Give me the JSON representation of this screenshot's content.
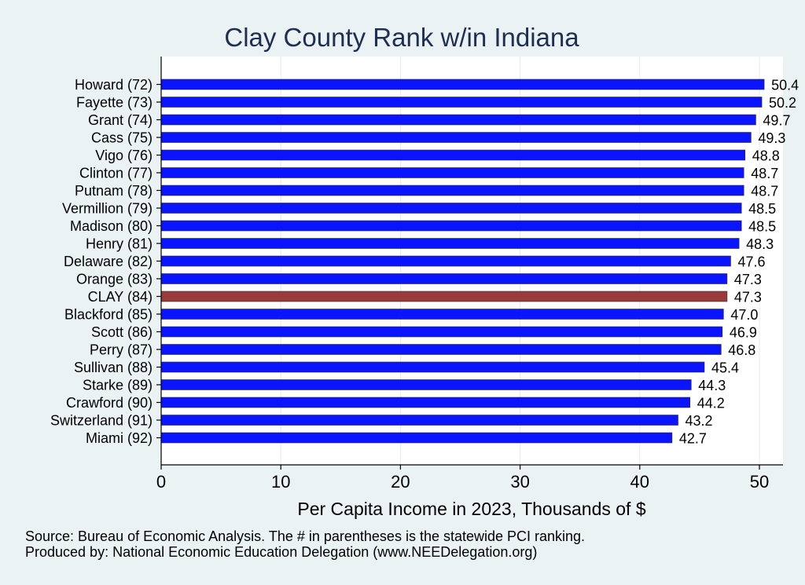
{
  "chart_data": {
    "type": "bar",
    "orientation": "horizontal",
    "title": "Clay County Rank w/in Indiana",
    "xlabel": "Per Capita Income in 2023, Thousands of $",
    "ylabel": "",
    "xlim": [
      0,
      52
    ],
    "xticks": [
      0,
      10,
      20,
      30,
      40,
      50
    ],
    "grid": true,
    "categories": [
      "Howard (72)",
      "Fayette (73)",
      "Grant (74)",
      "Cass (75)",
      "Vigo (76)",
      "Clinton (77)",
      "Putnam (78)",
      "Vermillion (79)",
      "Madison (80)",
      "Henry (81)",
      "Delaware (82)",
      "Orange (83)",
      "CLAY (84)",
      "Blackford (85)",
      "Scott (86)",
      "Perry (87)",
      "Sullivan (88)",
      "Starke (89)",
      "Crawford (90)",
      "Switzerland (91)",
      "Miami (92)"
    ],
    "values": [
      50.4,
      50.2,
      49.7,
      49.3,
      48.8,
      48.7,
      48.7,
      48.5,
      48.5,
      48.3,
      47.6,
      47.3,
      47.3,
      47.0,
      46.9,
      46.8,
      45.4,
      44.3,
      44.2,
      43.2,
      42.7
    ],
    "value_labels": [
      "50.4",
      "50.2",
      "49.7",
      "49.3",
      "48.8",
      "48.7",
      "48.7",
      "48.5",
      "48.5",
      "48.3",
      "47.6",
      "47.3",
      "47.3",
      "47.0",
      "46.9",
      "46.8",
      "45.4",
      "44.3",
      "44.2",
      "43.2",
      "42.7"
    ],
    "highlight_category": "CLAY (84)",
    "colors": {
      "bar": "#0a14ff",
      "highlight": "#9b3a3a",
      "background": "#eaf2f3",
      "plot_background": "#ffffff",
      "title": "#1e2f52"
    }
  },
  "notes": {
    "source": "Source: Bureau of Economic Analysis. The # in parentheses is the statewide PCI ranking.",
    "produced_by": "Produced by: National Economic Education Delegation (www.NEEDelegation.org)"
  }
}
